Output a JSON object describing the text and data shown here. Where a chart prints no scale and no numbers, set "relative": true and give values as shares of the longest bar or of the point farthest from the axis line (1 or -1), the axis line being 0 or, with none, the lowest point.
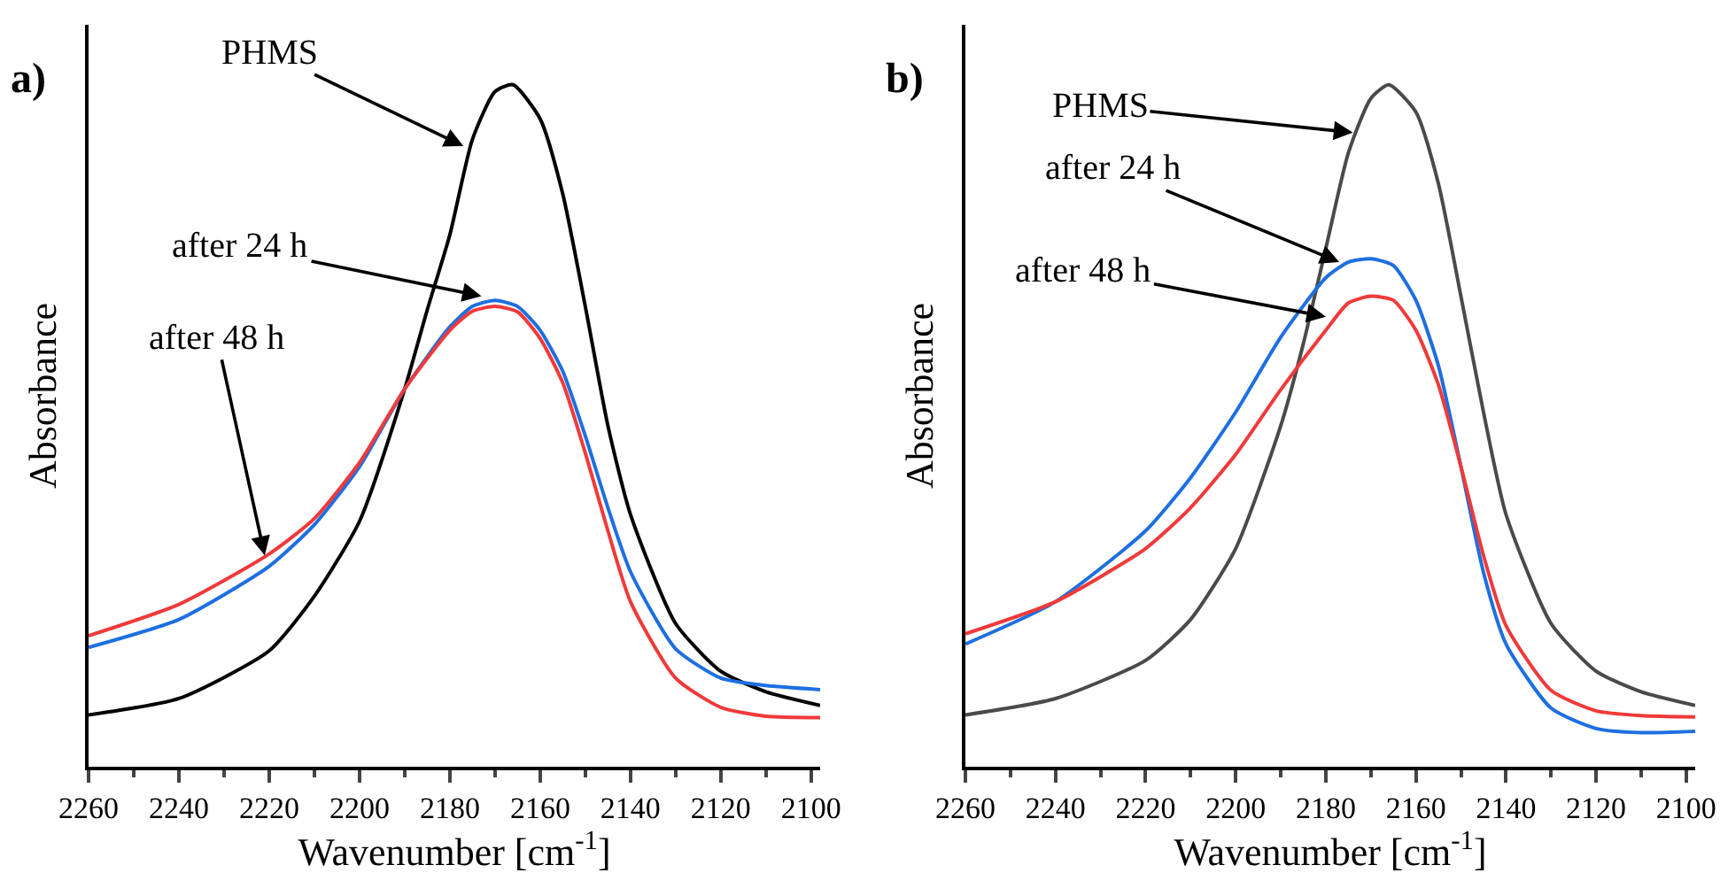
{
  "chart_data": [
    {
      "type": "line",
      "title": "a)",
      "xlabel": "Wavenumber [cm$^{-1}$]",
      "ylabel": "Absorbance",
      "relative": true,
      "xlim": [
        2260,
        2098
      ],
      "xticks": [
        2260,
        {
          "value": 2250,
          "label": null
        },
        2240,
        {
          "value": 2230,
          "label": null
        },
        2220,
        {
          "value": 2210,
          "label": null
        },
        2200,
        {
          "value": 2190,
          "label": null
        },
        2180,
        {
          "value": 2170,
          "label": null
        },
        2160,
        {
          "value": 2150,
          "label": null
        },
        2140,
        {
          "value": 2130,
          "label": null
        },
        2120,
        {
          "value": 2110,
          "label": null
        },
        2100
      ],
      "x": [
        2260,
        2240,
        2220,
        2210,
        2200,
        2190,
        2180,
        2175,
        2170,
        2165,
        2160,
        2155,
        2150,
        2145,
        2140,
        2130,
        2120,
        2110,
        2098
      ],
      "series": [
        {
          "color": "#000000",
          "x": [
            2260,
            2240,
            2220,
            2210,
            2200,
            2190,
            2185,
            2180,
            2175,
            2170,
            2166,
            2160,
            2155,
            2150,
            2145,
            2140,
            2130,
            2120,
            2110,
            2098
          ],
          "values": [
            0.076,
            0.1,
            0.17,
            0.25,
            0.36,
            0.554,
            0.67,
            0.78,
            0.92,
            0.99,
            1.0,
            0.95,
            0.84,
            0.675,
            0.5,
            0.37,
            0.21,
            0.14,
            0.11,
            0.09
          ]
        },
        {
          "color": "#1e6fe0",
          "values": [
            0.175,
            0.216,
            0.294,
            0.355,
            0.44,
            0.554,
            0.645,
            0.675,
            0.684,
            0.675,
            0.64,
            0.58,
            0.485,
            0.38,
            0.286,
            0.173,
            0.13,
            0.119,
            0.113
          ]
        },
        {
          "color": "#f03a3a",
          "values": [
            0.192,
            0.238,
            0.312,
            0.364,
            0.446,
            0.554,
            0.64,
            0.668,
            0.675,
            0.667,
            0.628,
            0.563,
            0.46,
            0.346,
            0.242,
            0.13,
            0.087,
            0.074,
            0.072
          ]
        }
      ],
      "annotations": [
        {
          "text": "PHMS",
          "x": 2177,
          "y": 0.91
        },
        {
          "text": "after 24 h",
          "x": 2173,
          "y": 0.69
        },
        {
          "text": "after 48 h",
          "x": 2221,
          "y": 0.31
        }
      ]
    },
    {
      "type": "line",
      "title": "b)",
      "xlabel": "Wavenumber [cm$^{-1}$]",
      "ylabel": "Absorbance",
      "relative": true,
      "xlim": [
        2260,
        2098
      ],
      "xticks": [
        2260,
        {
          "value": 2250,
          "label": null
        },
        2240,
        {
          "value": 2230,
          "label": null
        },
        2220,
        {
          "value": 2210,
          "label": null
        },
        2200,
        {
          "value": 2190,
          "label": null
        },
        2180,
        {
          "value": 2170,
          "label": null
        },
        2160,
        {
          "value": 2150,
          "label": null
        },
        2140,
        {
          "value": 2130,
          "label": null
        },
        2120,
        {
          "value": 2110,
          "label": null
        },
        2100
      ],
      "x": [
        2260,
        2240,
        2220,
        2210,
        2200,
        2190,
        2180,
        2175,
        2170,
        2165,
        2160,
        2155,
        2150,
        2145,
        2140,
        2130,
        2120,
        2110,
        2098
      ],
      "series": [
        {
          "color": "#4a4a4a",
          "x": [
            2260,
            2240,
            2220,
            2210,
            2200,
            2190,
            2185,
            2180,
            2175,
            2170,
            2166,
            2160,
            2155,
            2150,
            2145,
            2140,
            2130,
            2120,
            2110,
            2098
          ],
          "values": [
            0.076,
            0.1,
            0.156,
            0.216,
            0.32,
            0.5,
            0.62,
            0.76,
            0.9,
            0.98,
            1.0,
            0.96,
            0.855,
            0.69,
            0.52,
            0.37,
            0.21,
            0.14,
            0.11,
            0.09
          ]
        },
        {
          "color": "#1e6fe0",
          "values": [
            0.18,
            0.242,
            0.346,
            0.424,
            0.52,
            0.63,
            0.717,
            0.74,
            0.745,
            0.735,
            0.684,
            0.588,
            0.44,
            0.285,
            0.18,
            0.086,
            0.056,
            0.05,
            0.052
          ]
        },
        {
          "color": "#f03a3a",
          "values": [
            0.195,
            0.242,
            0.32,
            0.38,
            0.458,
            0.553,
            0.64,
            0.68,
            0.69,
            0.684,
            0.64,
            0.56,
            0.44,
            0.31,
            0.207,
            0.112,
            0.082,
            0.075,
            0.073
          ]
        }
      ],
      "annotations": [
        {
          "text": "PHMS",
          "x": 2174,
          "y": 0.93
        },
        {
          "text": "after 24 h",
          "x": 2177,
          "y": 0.74
        },
        {
          "text": "after 48 h",
          "x": 2180,
          "y": 0.66
        }
      ]
    }
  ]
}
